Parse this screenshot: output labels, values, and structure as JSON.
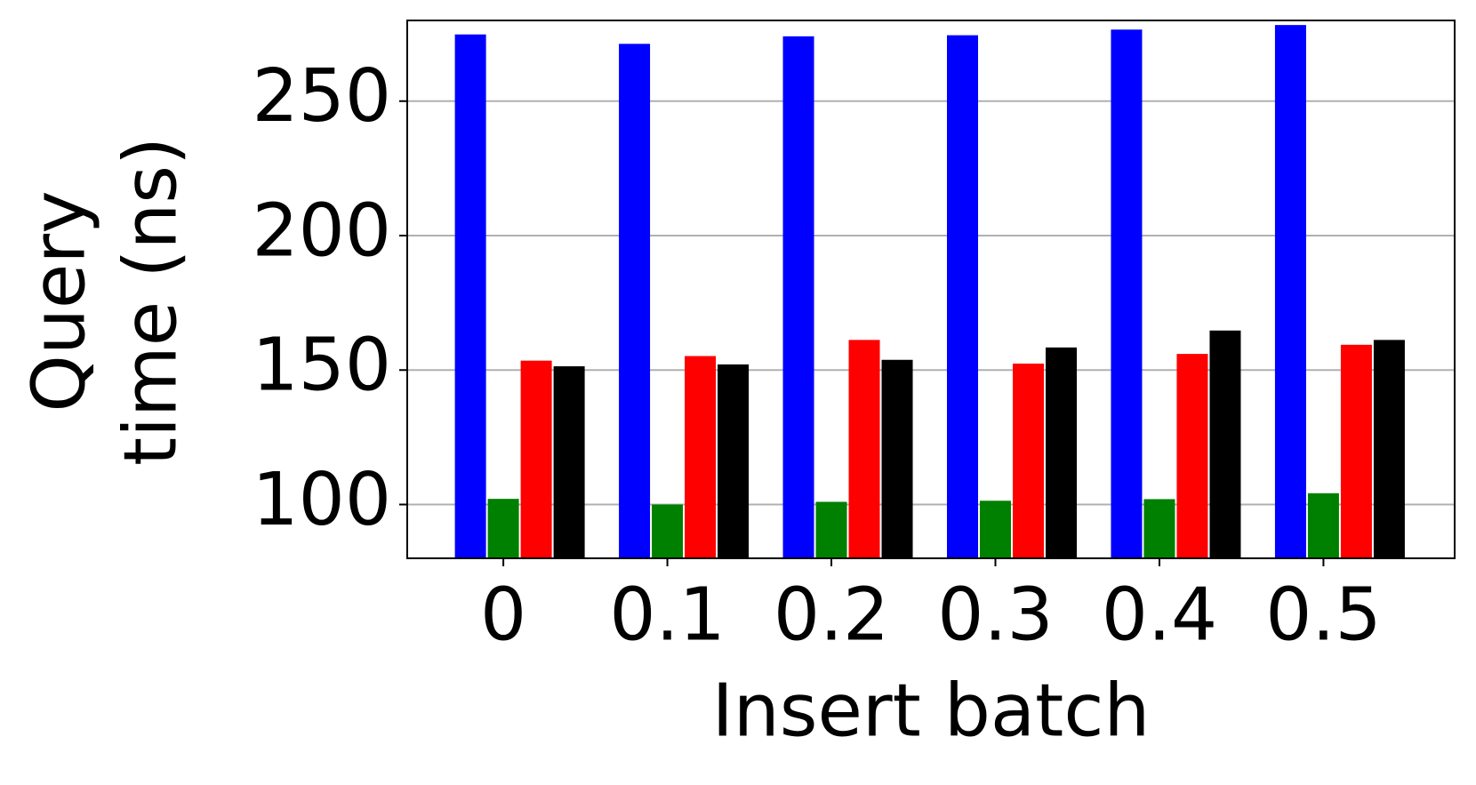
{
  "chart_data": {
    "type": "bar",
    "xlabel": "Insert batch",
    "ylabel": [
      "Query",
      "time (ns)"
    ],
    "categories": [
      "0",
      "0.1",
      "0.2",
      "0.3",
      "0.4",
      "0.5"
    ],
    "series": [
      {
        "color": "#0000ff",
        "values": [
          274.8,
          271.3,
          274.1,
          274.5,
          276.6,
          278.3
        ]
      },
      {
        "color": "#008000",
        "values": [
          102.1,
          100,
          101,
          101.4,
          102,
          104.2
        ]
      },
      {
        "color": "#ff0000",
        "values": [
          153.5,
          155.2,
          161.2,
          152.4,
          156,
          159.4
        ]
      },
      {
        "color": "#000000",
        "values": [
          151.4,
          152.1,
          153.8,
          158.4,
          164.7,
          161.2
        ]
      }
    ],
    "ylim": [
      80,
      280
    ],
    "yticks": [
      100,
      150,
      200,
      250
    ],
    "grid": true
  }
}
